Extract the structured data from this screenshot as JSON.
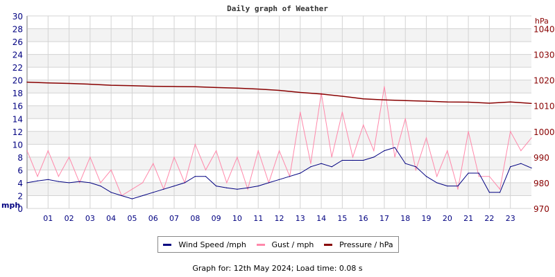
{
  "chart_data": {
    "type": "line",
    "title": "Daily graph of Weather",
    "ylabel_left": "mph",
    "ylabel_right": "hPa",
    "ylim_left": [
      0,
      30
    ],
    "yticks_left": [
      "0",
      "2",
      "4",
      "6",
      "8",
      "10",
      "12",
      "14",
      "16",
      "18",
      "20",
      "22",
      "24",
      "26",
      "28",
      "30"
    ],
    "ylim_right": [
      970,
      1045
    ],
    "yticks_right": [
      "970",
      "980",
      "990",
      "1000",
      "1010",
      "1020",
      "1030",
      "1040"
    ],
    "xlim_hours": [
      0,
      24
    ],
    "xticks": [
      "01",
      "02",
      "03",
      "04",
      "05",
      "06",
      "07",
      "08",
      "09",
      "10",
      "11",
      "12",
      "13",
      "14",
      "15",
      "16",
      "17",
      "18",
      "19",
      "20",
      "21",
      "22",
      "23"
    ],
    "grid": true,
    "legend_position": "bottom",
    "colors": {
      "wind": "#000080",
      "gust": "#ff88aa",
      "pressure": "#880000",
      "left_axis": "#000080",
      "right_axis": "#880000",
      "band": "#f3f3f3",
      "grid": "#d3d3d3"
    },
    "series": [
      {
        "name": "Wind Speed /mph",
        "axis": "left",
        "x_hours": [
          0,
          0.5,
          1,
          1.5,
          2,
          2.5,
          3,
          3.5,
          4,
          4.5,
          5,
          5.5,
          6,
          6.5,
          7,
          7.5,
          8,
          8.5,
          9,
          9.5,
          10,
          10.5,
          11,
          11.5,
          12,
          12.5,
          13,
          13.5,
          14,
          14.5,
          15,
          15.5,
          16,
          16.5,
          17,
          17.5,
          18,
          18.5,
          19,
          19.5,
          20,
          20.5,
          21,
          21.5,
          22,
          22.5,
          23,
          23.5,
          24
        ],
        "values": [
          4,
          4.3,
          4.5,
          4.2,
          4,
          4.2,
          4,
          3.5,
          2.5,
          2,
          1.5,
          2,
          2.5,
          3,
          3.5,
          4,
          5,
          5,
          3.5,
          3.2,
          3,
          3.2,
          3.5,
          4,
          4.5,
          5,
          5.5,
          6.5,
          7,
          6.5,
          7.5,
          7.5,
          7.5,
          8,
          9,
          9.5,
          7,
          6.5,
          5,
          4,
          3.5,
          3.5,
          5.5,
          5.5,
          2.5,
          2.5,
          6.5,
          7,
          6.3
        ]
      },
      {
        "name": "Gust / mph",
        "axis": "left",
        "x_hours": [
          0,
          0.5,
          1,
          1.5,
          2,
          2.5,
          3,
          3.5,
          4,
          4.5,
          5,
          5.5,
          6,
          6.5,
          7,
          7.5,
          8,
          8.5,
          9,
          9.5,
          10,
          10.5,
          11,
          11.5,
          12,
          12.5,
          13,
          13.5,
          14,
          14.5,
          15,
          15.5,
          16,
          16.5,
          17,
          17.5,
          18,
          18.5,
          19,
          19.5,
          20,
          20.5,
          21,
          21.5,
          22,
          22.5,
          23,
          23.5,
          24
        ],
        "values": [
          9,
          5,
          9,
          5,
          8,
          4,
          8,
          4,
          6,
          2,
          3,
          4,
          7,
          3,
          8,
          4,
          10,
          6,
          9,
          4,
          8,
          3,
          9,
          4,
          9,
          5,
          15,
          7,
          18,
          8,
          15,
          8,
          13,
          9,
          19,
          8,
          14,
          6,
          11,
          5,
          9,
          3,
          12,
          5,
          5,
          3,
          12,
          9,
          11
        ]
      },
      {
        "name": "Pressure / hPa",
        "axis": "right",
        "x_hours": [
          0,
          1,
          2,
          3,
          4,
          5,
          6,
          7,
          8,
          9,
          10,
          11,
          12,
          13,
          14,
          15,
          16,
          17,
          18,
          19,
          20,
          21,
          22,
          23,
          24
        ],
        "values": [
          1019.2,
          1018.9,
          1018.7,
          1018.4,
          1018.0,
          1017.8,
          1017.6,
          1017.5,
          1017.4,
          1017.1,
          1016.9,
          1016.5,
          1016.0,
          1015.2,
          1014.6,
          1013.7,
          1012.7,
          1012.3,
          1012.0,
          1011.8,
          1011.5,
          1011.4,
          1011.0,
          1011.5,
          1010.9
        ]
      }
    ]
  },
  "legend": {
    "wind": "Wind Speed /mph",
    "gust": "Gust / mph",
    "pressure": "Pressure / hPa"
  },
  "footer": "Graph for: 12th May 2024; Load time: 0.08 s"
}
